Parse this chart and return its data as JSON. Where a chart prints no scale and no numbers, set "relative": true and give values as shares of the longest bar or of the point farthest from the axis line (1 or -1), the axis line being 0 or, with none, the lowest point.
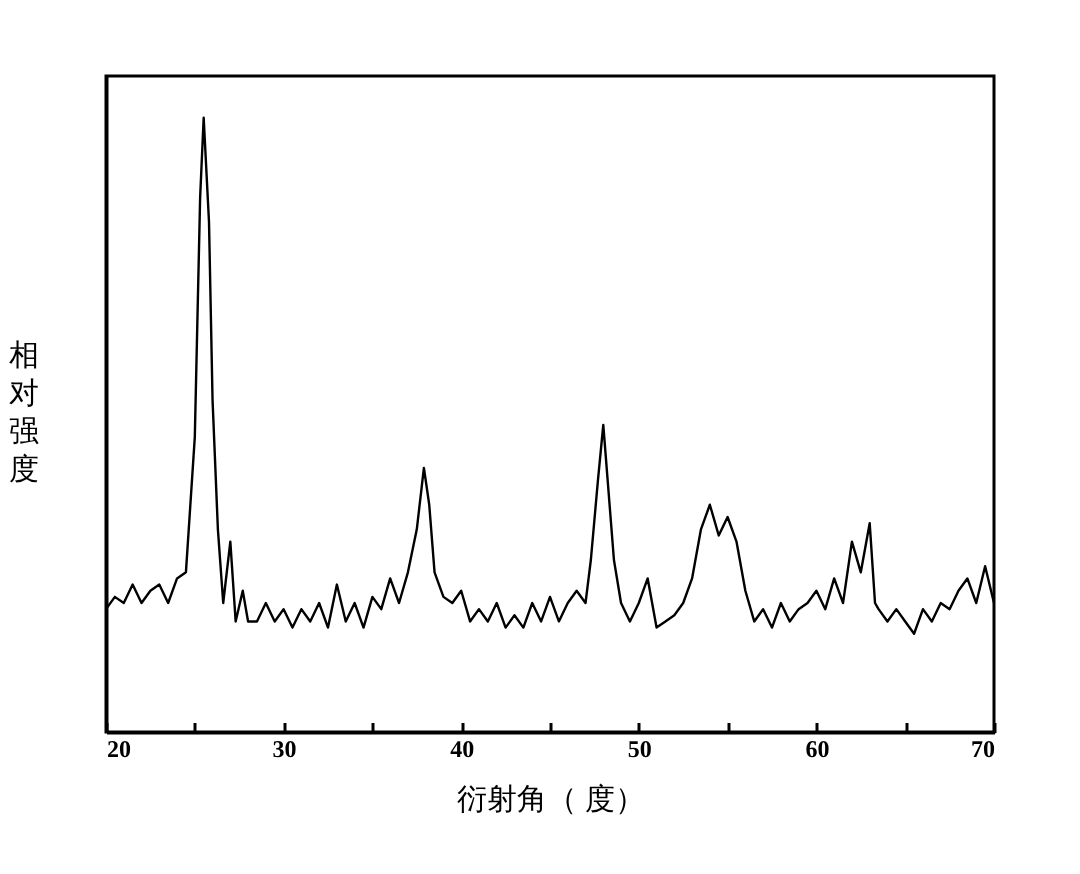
{
  "chart_data": {
    "type": "line",
    "relative": true,
    "xlabel": "衍射角（ 度）",
    "ylabel": "相对强度",
    "xlim": [
      20,
      70
    ],
    "xticks": [
      20,
      {
        "value": 25,
        "label": null
      },
      30,
      {
        "value": 35,
        "label": null
      },
      40,
      {
        "value": 45,
        "label": null
      },
      50,
      {
        "value": 55,
        "label": null
      },
      60,
      {
        "value": 65,
        "label": null
      },
      70
    ],
    "x": [
      20,
      20.5,
      21,
      21.5,
      22,
      22.5,
      23,
      23.5,
      24,
      24.5,
      25,
      25.3,
      25.5,
      25.8,
      26,
      26.3,
      26.6,
      27,
      27.3,
      27.7,
      28,
      28.5,
      29,
      29.5,
      30,
      30.5,
      31,
      31.5,
      32,
      32.5,
      33,
      33.5,
      34,
      34.5,
      35,
      35.5,
      36,
      36.5,
      37,
      37.5,
      37.9,
      38.2,
      38.5,
      39,
      39.5,
      40,
      40.5,
      41,
      41.5,
      42,
      42.5,
      43,
      43.5,
      44,
      44.5,
      45,
      45.5,
      46,
      46.5,
      47,
      47.3,
      47.7,
      48,
      48.3,
      48.6,
      49,
      49.5,
      50,
      50.5,
      51,
      51.5,
      52,
      52.5,
      53,
      53.5,
      54,
      54.5,
      55,
      55.5,
      56,
      56.5,
      57,
      57.5,
      58,
      58.5,
      59,
      59.5,
      60,
      60.5,
      61,
      61.5,
      62,
      62.5,
      63,
      63.3,
      63.5,
      64,
      64.5,
      65,
      65.5,
      66,
      66.5,
      67,
      67.5,
      68,
      68.5,
      69,
      69.5,
      70
    ],
    "series": [
      {
        "color": "#000000",
        "values": [
          0.2,
          0.22,
          0.21,
          0.24,
          0.21,
          0.23,
          0.24,
          0.21,
          0.25,
          0.26,
          0.48,
          0.87,
          1,
          0.83,
          0.54,
          0.33,
          0.21,
          0.31,
          0.18,
          0.23,
          0.18,
          0.18,
          0.21,
          0.18,
          0.2,
          0.17,
          0.2,
          0.18,
          0.21,
          0.17,
          0.24,
          0.18,
          0.21,
          0.17,
          0.22,
          0.2,
          0.25,
          0.21,
          0.26,
          0.33,
          0.43,
          0.37,
          0.26,
          0.22,
          0.21,
          0.23,
          0.18,
          0.2,
          0.18,
          0.21,
          0.17,
          0.19,
          0.17,
          0.21,
          0.18,
          0.22,
          0.18,
          0.21,
          0.23,
          0.21,
          0.28,
          0.41,
          0.5,
          0.39,
          0.28,
          0.21,
          0.18,
          0.21,
          0.25,
          0.17,
          0.18,
          0.19,
          0.21,
          0.25,
          0.33,
          0.37,
          0.32,
          0.35,
          0.31,
          0.23,
          0.18,
          0.2,
          0.17,
          0.21,
          0.18,
          0.2,
          0.21,
          0.23,
          0.2,
          0.25,
          0.21,
          0.31,
          0.26,
          0.34,
          0.21,
          0.2,
          0.18,
          0.2,
          0.18,
          0.16,
          0.2,
          0.18,
          0.21,
          0.2,
          0.23,
          0.25,
          0.21,
          0.27,
          0.21
        ]
      }
    ]
  }
}
